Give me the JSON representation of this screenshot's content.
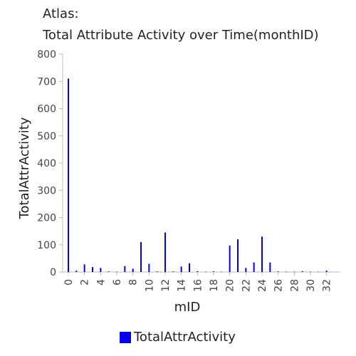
{
  "chart_data": {
    "type": "bar",
    "title": "Atlas:",
    "subtitle": "Total Attribute Activity over Time(monthID)",
    "xlabel": "mID",
    "ylabel": "TotalAttrActivity",
    "ylim": [
      0,
      800
    ],
    "xlim": [
      0,
      33
    ],
    "yticks": [
      0,
      100,
      200,
      300,
      400,
      500,
      600,
      700,
      800
    ],
    "xticks": [
      0,
      2,
      4,
      6,
      8,
      10,
      12,
      14,
      16,
      18,
      20,
      22,
      24,
      26,
      28,
      30,
      32
    ],
    "series": [
      {
        "name": "TotalAttrActivity",
        "color": "#0000ee",
        "x": [
          0,
          1,
          2,
          3,
          4,
          5,
          6,
          7,
          8,
          9,
          10,
          11,
          12,
          13,
          14,
          15,
          16,
          17,
          18,
          19,
          20,
          21,
          22,
          23,
          24,
          25,
          26,
          27,
          28,
          29,
          30,
          31,
          32
        ],
        "values": [
          710,
          5,
          28,
          18,
          15,
          2,
          1,
          22,
          12,
          110,
          30,
          2,
          145,
          2,
          20,
          32,
          3,
          1,
          2,
          1,
          97,
          120,
          15,
          35,
          130,
          35,
          2,
          1,
          1,
          3,
          1,
          1,
          5
        ]
      }
    ],
    "legend_position": "bottom-center"
  }
}
